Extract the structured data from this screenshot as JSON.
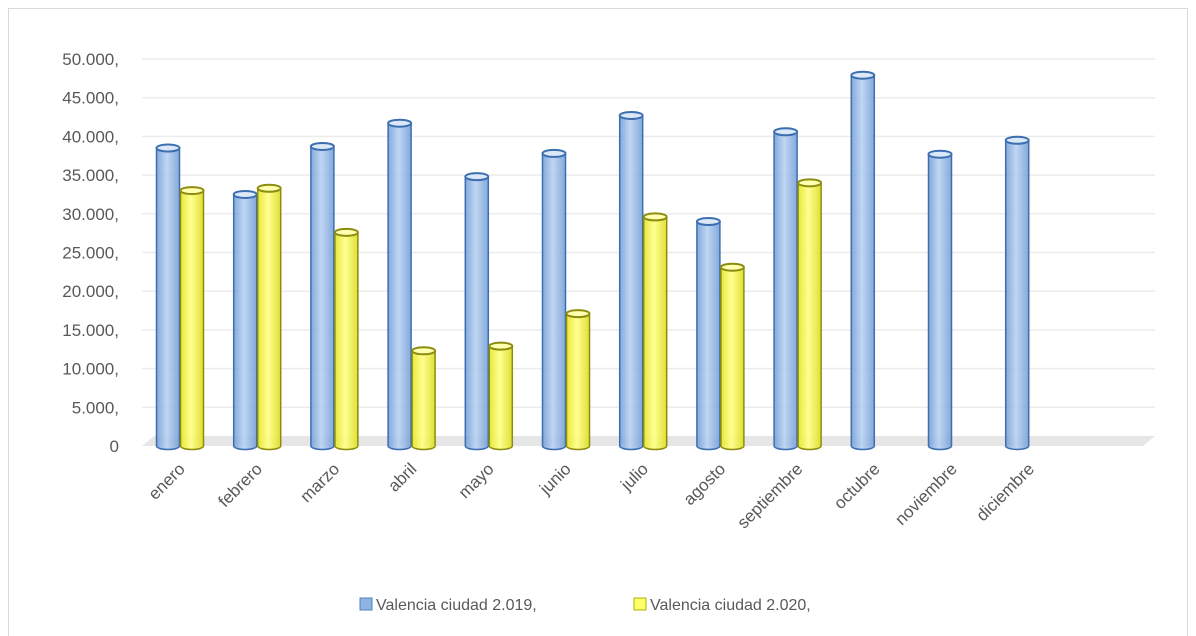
{
  "chart_data": {
    "type": "bar",
    "categories": [
      "enero",
      "febrero",
      "marzo",
      "abril",
      "mayo",
      "junio",
      "julio",
      "agosto",
      "septiembre",
      "octubre",
      "noviembre",
      "diciembre"
    ],
    "series": [
      {
        "name": "Valencia ciudad 2.019,",
        "color": "#8eb4e3",
        "values": [
          38500,
          32500,
          38700,
          41700,
          34800,
          37800,
          42700,
          29000,
          40600,
          47900,
          37700,
          39500
        ]
      },
      {
        "name": "Valencia ciudad 2.020,",
        "color": "#ffff66",
        "values": [
          33000,
          33300,
          27600,
          12300,
          12900,
          17100,
          29600,
          23100,
          34000,
          null,
          null,
          null
        ]
      }
    ],
    "yticks": [
      "0",
      "5.000,",
      "10.000,",
      "15.000,",
      "20.000,",
      "25.000,",
      "30.000,",
      "35.000,",
      "40.000,",
      "45.000,",
      "50.000,"
    ],
    "ylim": [
      0,
      50000
    ],
    "grid": true,
    "legend_position": "bottom",
    "title": "",
    "xlabel": "",
    "ylabel": ""
  }
}
